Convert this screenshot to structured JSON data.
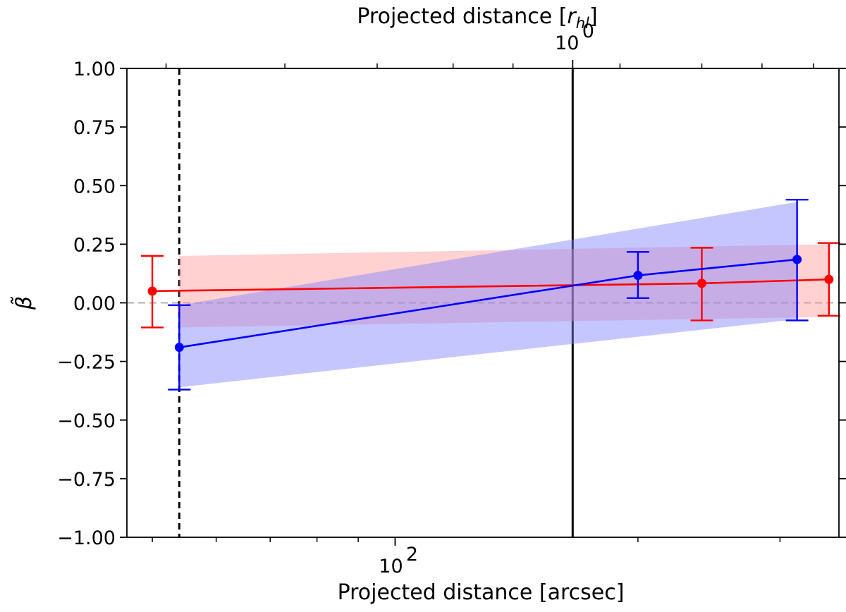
{
  "chart_data": {
    "type": "line",
    "title": "",
    "xlabel": "Projected distance [arcsec]",
    "xlabel_top": "Projected distance [r_hl]",
    "ylabel": "β̃",
    "xscale": "log",
    "xlim": [
      46.5,
      355
    ],
    "ylim": [
      -1.0,
      1.0
    ],
    "yticks": [
      -1.0,
      -0.75,
      -0.5,
      -0.25,
      0.0,
      0.25,
      0.5,
      0.75,
      1.0
    ],
    "ytick_labels": [
      "−1.00",
      "−0.75",
      "−0.50",
      "−0.25",
      "0.00",
      "0.25",
      "0.50",
      "0.75",
      "1.00"
    ],
    "xtick_major_label": {
      "base": "10",
      "exp": "2",
      "value": 100
    },
    "xtick_top_label": {
      "base": "10",
      "exp": "0",
      "value": 166
    },
    "reference_lines": [
      {
        "name": "zero-line",
        "orientation": "horizontal",
        "value": 0.0,
        "style": "dashed",
        "color": "#b0b0b0"
      },
      {
        "name": "inner-limit-line",
        "orientation": "vertical",
        "value": 54,
        "style": "dashed",
        "color": "#000000"
      },
      {
        "name": "half-light-radius-line",
        "orientation": "vertical",
        "value": 166,
        "style": "solid",
        "color": "#000000"
      }
    ],
    "series": [
      {
        "name": "red",
        "color": "#ff0000",
        "band_color": "#ff9999",
        "x": [
          50,
          240,
          345
        ],
        "y": [
          0.05,
          0.083,
          0.1
        ],
        "yerr_low": [
          -0.105,
          -0.075,
          -0.055
        ],
        "yerr_high": [
          0.2,
          0.235,
          0.255
        ],
        "band": {
          "x": [
            54,
            345
          ],
          "upper": [
            0.2,
            0.25
          ],
          "lower": [
            -0.105,
            -0.06
          ]
        }
      },
      {
        "name": "blue",
        "color": "#0000ff",
        "band_color": "#8080ff",
        "x": [
          54,
          200,
          315
        ],
        "y": [
          -0.19,
          0.117,
          0.185
        ],
        "yerr_low": [
          -0.37,
          0.02,
          -0.075
        ],
        "yerr_high": [
          -0.01,
          0.217,
          0.44
        ],
        "band": {
          "x": [
            54,
            315
          ],
          "upper": [
            -0.01,
            0.43
          ],
          "lower": [
            -0.36,
            -0.07
          ]
        }
      }
    ]
  }
}
